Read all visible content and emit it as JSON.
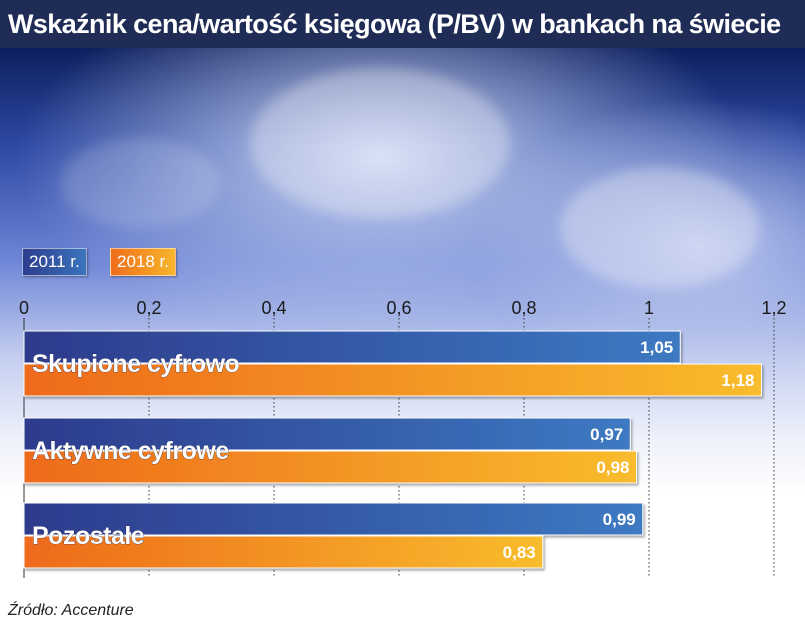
{
  "title": "Wskaźnik cena/wartość księgowa (P/BV) w bankach na świecie",
  "source": "Źródło: Accenture",
  "chart_data": {
    "type": "bar",
    "orientation": "horizontal",
    "categories": [
      "Skupione cyfrowo",
      "Aktywne cyfrowe",
      "Pozostałe"
    ],
    "series": [
      {
        "name": "2011 r.",
        "values": [
          1.05,
          0.97,
          0.99
        ],
        "color": "#3b6fb9"
      },
      {
        "name": "2018 r.",
        "values": [
          1.18,
          0.98,
          0.83
        ],
        "color": "#f2a027"
      }
    ],
    "value_labels": [
      [
        "1,05",
        "0,97",
        "0,99"
      ],
      [
        "1,18",
        "0,98",
        "0,83"
      ]
    ],
    "xlim": [
      0,
      1.2
    ],
    "xticks": [
      0,
      0.2,
      0.4,
      0.6,
      0.8,
      1,
      1.2
    ],
    "xtick_labels": [
      "0",
      "0,2",
      "0,4",
      "0,6",
      "0,8",
      "1",
      "1,2"
    ],
    "grid": true,
    "legend_position": "top-left"
  }
}
